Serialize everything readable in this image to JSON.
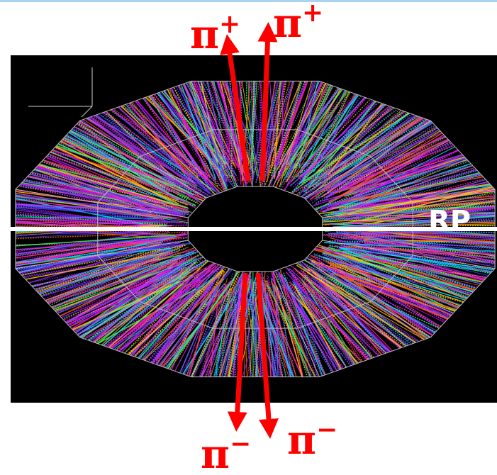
{
  "labels": [
    {
      "symbol": "π",
      "charge": "+"
    },
    {
      "symbol": "π",
      "charge": "+"
    },
    {
      "symbol": "π",
      "charge": "−"
    },
    {
      "symbol": "π",
      "charge": "−"
    }
  ],
  "plane_label": "RP"
}
